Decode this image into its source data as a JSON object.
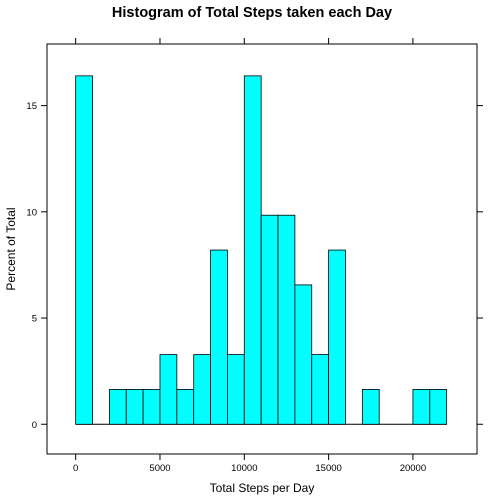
{
  "chart_data": {
    "type": "bar",
    "title": "Histogram of Total Steps taken each Day",
    "xlabel": "Total Steps per Day",
    "ylabel": "Percent of Total",
    "bin_width": 1000,
    "bins": [
      {
        "start": 0,
        "end": 1000,
        "percent": 16.4
      },
      {
        "start": 1000,
        "end": 2000,
        "percent": 0
      },
      {
        "start": 2000,
        "end": 3000,
        "percent": 1.64
      },
      {
        "start": 3000,
        "end": 4000,
        "percent": 1.64
      },
      {
        "start": 4000,
        "end": 5000,
        "percent": 1.64
      },
      {
        "start": 5000,
        "end": 6000,
        "percent": 3.28
      },
      {
        "start": 6000,
        "end": 7000,
        "percent": 1.64
      },
      {
        "start": 7000,
        "end": 8000,
        "percent": 3.28
      },
      {
        "start": 8000,
        "end": 9000,
        "percent": 8.2
      },
      {
        "start": 9000,
        "end": 10000,
        "percent": 3.28
      },
      {
        "start": 10000,
        "end": 11000,
        "percent": 16.4
      },
      {
        "start": 11000,
        "end": 12000,
        "percent": 9.84
      },
      {
        "start": 12000,
        "end": 13000,
        "percent": 9.84
      },
      {
        "start": 13000,
        "end": 14000,
        "percent": 6.56
      },
      {
        "start": 14000,
        "end": 15000,
        "percent": 3.28
      },
      {
        "start": 15000,
        "end": 16000,
        "percent": 8.2
      },
      {
        "start": 16000,
        "end": 17000,
        "percent": 0
      },
      {
        "start": 17000,
        "end": 18000,
        "percent": 1.64
      },
      {
        "start": 18000,
        "end": 19000,
        "percent": 0
      },
      {
        "start": 19000,
        "end": 20000,
        "percent": 0
      },
      {
        "start": 20000,
        "end": 21000,
        "percent": 1.64
      },
      {
        "start": 21000,
        "end": 22000,
        "percent": 1.64
      }
    ],
    "x_ticks": [
      0,
      5000,
      10000,
      15000,
      20000
    ],
    "y_ticks": [
      0,
      5,
      10,
      15
    ],
    "xlim": [
      -1700,
      23800
    ],
    "ylim": [
      -1.4,
      17.9
    ],
    "bar_color": "#00ffff",
    "grid": false
  }
}
